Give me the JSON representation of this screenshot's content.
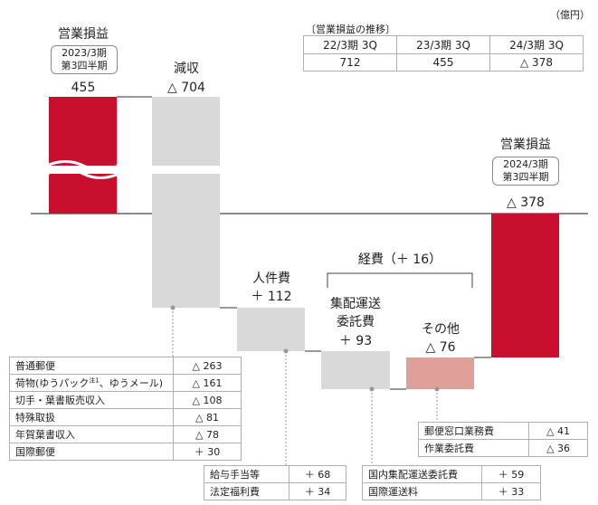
{
  "unit": "（億円）",
  "trend": {
    "caption": "〔営業損益の推移〕",
    "headers": [
      "22/3期 3Q",
      "23/3期 3Q",
      "24/3期 3Q"
    ],
    "values": [
      "712",
      "455",
      "△ 378"
    ]
  },
  "start": {
    "title": "営業損益",
    "period_line1": "2023/3期",
    "period_line2": "第3四半期",
    "value_label": "455"
  },
  "end": {
    "title": "営業損益",
    "period_line1": "2024/3期",
    "period_line2": "第3四半期",
    "value_label": "△ 378"
  },
  "revenue_drop": {
    "label": "減収",
    "value_label": "△ 704"
  },
  "personnel": {
    "label": "人件費",
    "value_label": "＋ 112"
  },
  "expense_group": {
    "label": "経費（＋ 16）"
  },
  "delivery": {
    "label_line1": "集配運送",
    "label_line2": "委託費",
    "value_label": "＋ 93"
  },
  "other": {
    "label": "その他",
    "value_label": "△ 76"
  },
  "revenue_breakdown": [
    {
      "name": "普通郵便",
      "value": "△ 263"
    },
    {
      "name": "荷物(ゆうパック",
      "note": "注1",
      "name_suffix": "、ゆうメール)",
      "value": "△ 161"
    },
    {
      "name": "切手・葉書販売収入",
      "value": "△ 108"
    },
    {
      "name": "特殊取扱",
      "value": "△ 81"
    },
    {
      "name": "年賀葉書収入",
      "value": "△ 78"
    },
    {
      "name": "国際郵便",
      "value": "＋ 30"
    }
  ],
  "personnel_breakdown": [
    {
      "name": "給与手当等",
      "value": "＋ 68"
    },
    {
      "name": "法定福利費",
      "value": "＋ 34"
    }
  ],
  "delivery_breakdown": [
    {
      "name": "国内集配運送委託費",
      "value": "＋ 59"
    },
    {
      "name": "国際運送料",
      "value": "＋ 33"
    }
  ],
  "other_breakdown": [
    {
      "name": "郵便窓口業務費",
      "value": "△ 41"
    },
    {
      "name": "作業委託費",
      "value": "△ 36"
    }
  ],
  "chart_data": {
    "type": "bar",
    "subtype": "waterfall",
    "unit": "億円",
    "steps": [
      {
        "name": "営業損益 2023/3期 第3四半期",
        "kind": "total",
        "value": 455,
        "axis_break": true
      },
      {
        "name": "減収",
        "kind": "delta",
        "value": -704
      },
      {
        "name": "人件費",
        "kind": "delta",
        "value": -112,
        "shown": "＋ 112"
      },
      {
        "name": "集配運送委託費",
        "kind": "delta",
        "value": -93,
        "shown": "＋ 93"
      },
      {
        "name": "その他",
        "kind": "delta",
        "value": 76,
        "shown": "△ 76"
      },
      {
        "name": "営業損益 2024/3期 第3四半期",
        "kind": "total",
        "value": -378
      }
    ],
    "colors": {
      "profit": "#c8102e",
      "grey": "#d9d9d9",
      "other": "#e0a09a"
    }
  }
}
